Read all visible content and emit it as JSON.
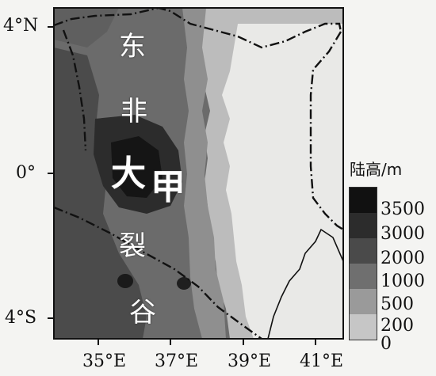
{
  "axes": {
    "lat_labels": [
      "4°N",
      "0°",
      "4°S"
    ],
    "lon_labels": [
      "35°E",
      "37°E",
      "39°E",
      "41°E"
    ]
  },
  "map_text": {
    "chars": [
      "东",
      "非",
      "大",
      "甲",
      "裂",
      "谷"
    ]
  },
  "legend": {
    "title": "陆高/m",
    "values": [
      "3500",
      "3000",
      "2000",
      "1000",
      "500",
      "200",
      "0"
    ],
    "colors": [
      "#111111",
      "#2c2c2c",
      "#4a4a4a",
      "#6f6f6f",
      "#9a9a9a",
      "#c6c6c6",
      "#f2f2f2"
    ]
  }
}
